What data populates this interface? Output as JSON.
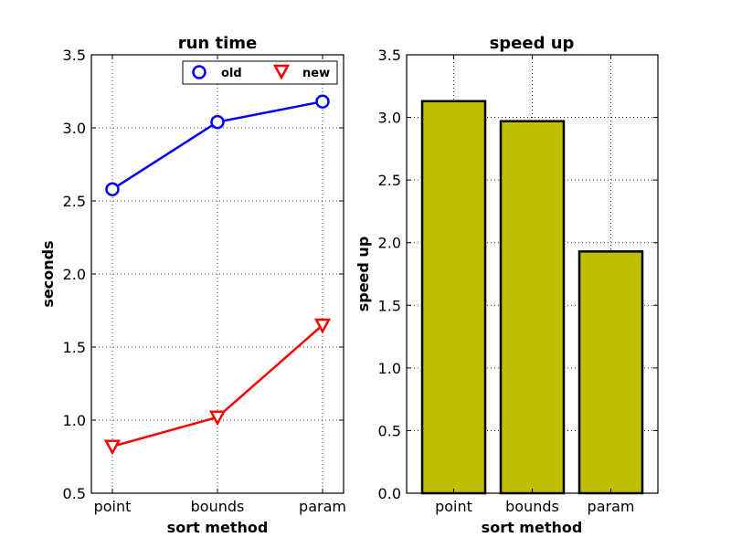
{
  "chart_data": [
    {
      "type": "line",
      "title": "run time",
      "xlabel": "sort method",
      "ylabel": "seconds",
      "categories": [
        "point",
        "bounds",
        "param"
      ],
      "ylim": [
        0.5,
        3.5
      ],
      "yticks": [
        "0.5",
        "1.0",
        "1.5",
        "2.0",
        "2.5",
        "3.0",
        "3.5"
      ],
      "grid": true,
      "legend": "top-right",
      "series": [
        {
          "name": "old",
          "values": [
            2.58,
            3.04,
            3.18
          ],
          "color": "#0000ff",
          "marker": "circle"
        },
        {
          "name": "new",
          "values": [
            0.82,
            1.02,
            1.65
          ],
          "color": "#ff0000",
          "marker": "triangle-down"
        }
      ]
    },
    {
      "type": "bar",
      "title": "speed up",
      "xlabel": "sort method",
      "ylabel": "speed up",
      "categories": [
        "point",
        "bounds",
        "param"
      ],
      "values": [
        3.13,
        2.97,
        1.93
      ],
      "ylim": [
        0.0,
        3.5
      ],
      "yticks": [
        "0.0",
        "0.5",
        "1.0",
        "1.5",
        "2.0",
        "2.5",
        "3.0",
        "3.5"
      ],
      "grid": true,
      "color": "#bfbf00"
    }
  ]
}
